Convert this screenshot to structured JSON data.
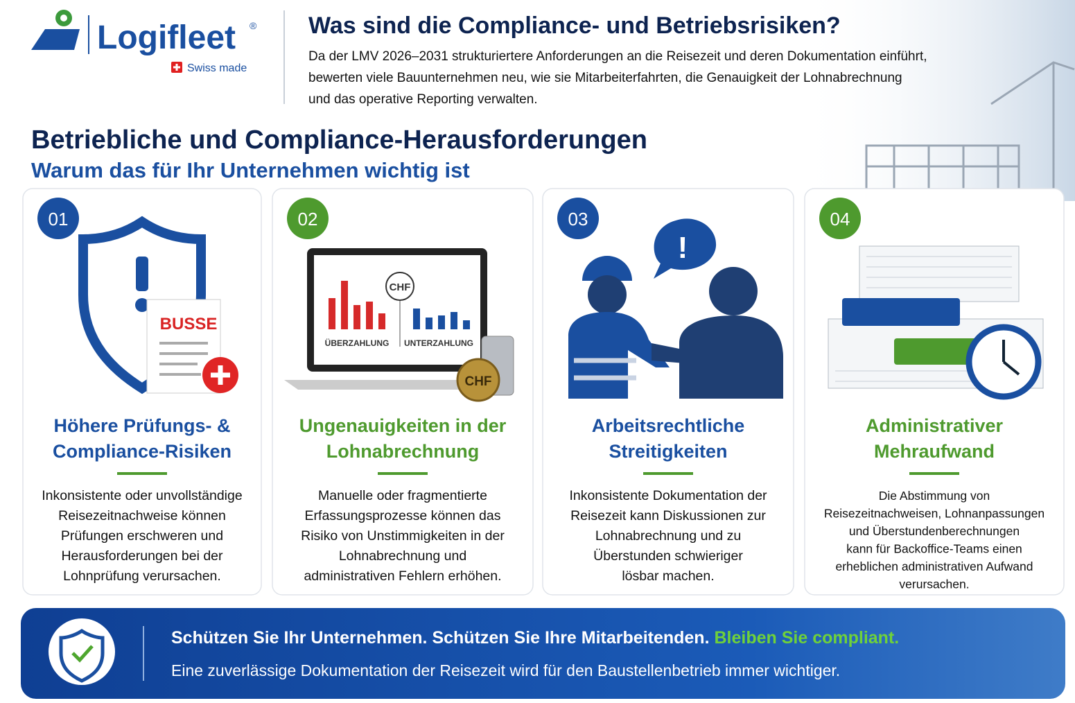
{
  "header": {
    "logo": "Logifleet",
    "logo_mark": "®",
    "tagline": "Swiss made",
    "title": "Was sind die Compliance- und Betriebsrisiken?",
    "intro": [
      "Da der LMV 2026–2031 strukturiertere Anforderungen an die Reisezeit und deren Dokumentation einführt,",
      "bewerten viele Bauunternehmen neu, wie sie Mitarbeiterfahrten, die Genauigkeit der Lohnabrechnung",
      "und das operative Reporting verwalten."
    ]
  },
  "section": {
    "title": "Betriebliche und Compliance-Herausforderungen",
    "subtitle": "Warum das für Ihr Unternehmen wichtig ist"
  },
  "cards": [
    {
      "number": "01",
      "illustration_labels": [
        "BUSSE"
      ],
      "title": [
        "Höhere Prüfungs- &",
        "Compliance-Risiken"
      ],
      "text": [
        "Inkonsistente oder unvollständige",
        "Reisezeitnachweise können",
        "Prüfungen erschweren und",
        "Herausforderungen bei der",
        "Lohnprüfung verursachen."
      ]
    },
    {
      "number": "02",
      "illustration_labels": [
        "CHF",
        "ÜBERZAHLUNG",
        "UNTERZAHLUNG",
        "CHF"
      ],
      "title": [
        "Ungenauigkeiten in der",
        "Lohnabrechnung"
      ],
      "text": [
        "Manuelle oder fragmentierte",
        "Erfassungsprozesse können das",
        "Risiko von Unstimmigkeiten in der",
        "Lohnabrechnung und",
        "administrativen Fehlern erhöhen."
      ]
    },
    {
      "number": "03",
      "illustration_labels": [
        "!"
      ],
      "title": [
        "Arbeitsrechtliche",
        "Streitigkeiten"
      ],
      "text": [
        "Inkonsistente Dokumentation der",
        "Reisezeit kann Diskussionen zur",
        "Lohnabrechnung und zu",
        "Überstunden schwieriger",
        "lösbar machen."
      ]
    },
    {
      "number": "04",
      "illustration_labels": [],
      "title": [
        "Administrativer",
        "Mehraufwand"
      ],
      "text": [
        "Die Abstimmung von",
        "Reisezeitnachweisen, Lohnanpassungen",
        "und Überstundenberechnungen",
        "kann für Backoffice-Teams einen",
        "erheblichen administrativen Aufwand",
        "verursachen."
      ]
    }
  ],
  "banner": {
    "line1": [
      "Schützen Sie Ihr Unternehmen. Schützen Sie Ihre Mitarbeitenden.",
      "Bleiben Sie compliant."
    ],
    "line2": "Eine zuverlässige Dokumentation der Reisezeit wird für den Baustellenbetrieb immer wichtiger."
  }
}
